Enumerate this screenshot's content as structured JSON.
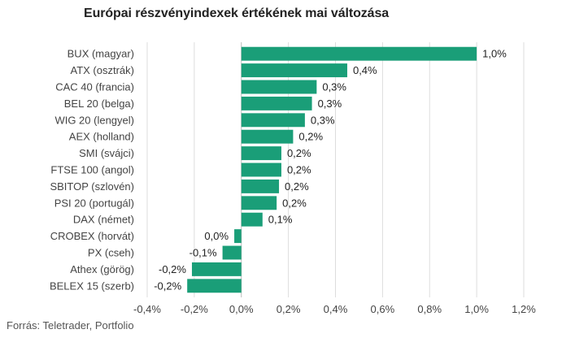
{
  "chart_data": {
    "type": "bar",
    "orientation": "horizontal",
    "title": "Európai részvényindexek értékének mai változása",
    "categories": [
      "BUX (magyar)",
      "ATX (osztrák)",
      "CAC 40 (francia)",
      "BEL 20 (belga)",
      "WIG 20 (lengyel)",
      "AEX (holland)",
      "SMI (svájci)",
      "FTSE 100 (angol)",
      "SBITOP (szlovén)",
      "PSI 20 (portugál)",
      "DAX (német)",
      "CROBEX (horvát)",
      "PX (cseh)",
      "Athex (görög)",
      "BELEX 15 (szerb)"
    ],
    "values": [
      1.0,
      0.45,
      0.32,
      0.3,
      0.27,
      0.22,
      0.17,
      0.17,
      0.16,
      0.15,
      0.09,
      -0.03,
      -0.08,
      -0.21,
      -0.23
    ],
    "data_labels": [
      "1,0%",
      "0,4%",
      "0,3%",
      "0,3%",
      "0,3%",
      "0,2%",
      "0,2%",
      "0,2%",
      "0,2%",
      "0,2%",
      "0,1%",
      "0,0%",
      "-0,1%",
      "-0,2%",
      "-0,2%"
    ],
    "xlim": [
      -0.4,
      1.2
    ],
    "xticks": [
      -0.4,
      -0.2,
      0.0,
      0.2,
      0.4,
      0.6,
      0.8,
      1.0,
      1.2
    ],
    "xtick_labels": [
      "-0,4%",
      "-0,2%",
      "0,0%",
      "0,2%",
      "0,4%",
      "0,6%",
      "0,8%",
      "1,0%",
      "1,2%"
    ],
    "xlabel": "",
    "ylabel": "",
    "grid": "vertical",
    "bar_color": "#1a9e78",
    "grid_color": "#dddddd",
    "text_color": "#444444"
  },
  "source": "Forrás: Teletrader, Portfolio"
}
